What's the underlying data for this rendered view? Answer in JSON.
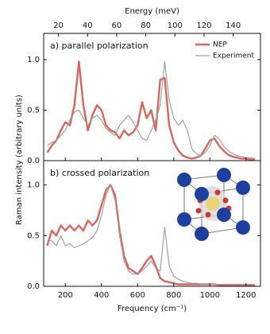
{
  "chart_data": [
    {
      "type": "line",
      "title": "a) parallel polarization",
      "x2label": "Energy (meV)",
      "ylabel": "Raman intensity (arbitrary units)",
      "x": [
        100,
        125,
        150,
        175,
        200,
        225,
        250,
        275,
        300,
        325,
        350,
        375,
        400,
        425,
        450,
        475,
        500,
        525,
        550,
        575,
        600,
        625,
        650,
        675,
        700,
        725,
        750,
        775,
        800,
        825,
        850,
        875,
        900,
        925,
        950,
        975,
        1000,
        1025,
        1050,
        1075,
        1100,
        1125,
        1150,
        1175,
        1200,
        1225,
        1250
      ],
      "series": [
        {
          "name": "NEP",
          "color": "#d9665b",
          "values": [
            0.08,
            0.15,
            0.2,
            0.3,
            0.38,
            0.35,
            0.55,
            0.98,
            0.55,
            0.3,
            0.45,
            0.55,
            0.5,
            0.35,
            0.3,
            0.28,
            0.22,
            0.3,
            0.25,
            0.28,
            0.35,
            0.58,
            0.42,
            0.5,
            0.3,
            0.8,
            0.82,
            0.35,
            0.18,
            0.1,
            0.05,
            0.03,
            0.02,
            0.03,
            0.05,
            0.12,
            0.2,
            0.22,
            0.15,
            0.1,
            0.06,
            0.04,
            0.03,
            0.02,
            0.02,
            0.01,
            0.01
          ]
        },
        {
          "name": "Experiment",
          "color": "#a0a0a0",
          "values": [
            0.15,
            0.18,
            0.2,
            0.25,
            0.3,
            0.4,
            0.48,
            0.5,
            0.42,
            0.35,
            0.42,
            0.45,
            0.4,
            0.32,
            0.28,
            0.25,
            0.35,
            0.4,
            0.45,
            0.38,
            0.3,
            0.22,
            0.2,
            0.3,
            0.4,
            0.55,
            0.98,
            0.6,
            0.42,
            0.35,
            0.4,
            0.3,
            0.12,
            0.07,
            0.05,
            0.08,
            0.15,
            0.25,
            0.22,
            0.15,
            0.1,
            0.07,
            0.05,
            0.04,
            0.03,
            0.03,
            0.02
          ]
        }
      ],
      "xlim": [
        80,
        1280
      ],
      "x2lim": [
        9.9,
        158.7
      ],
      "x2ticks": [
        20,
        40,
        60,
        80,
        100,
        120,
        140
      ],
      "ylim": [
        0,
        1.26
      ],
      "yticks": [
        {
          "value": 0,
          "label": "0.0"
        },
        {
          "value": 0.5,
          "label": "0.5"
        },
        {
          "value": 1,
          "label": "1.0"
        }
      ],
      "legend": "upper right"
    },
    {
      "type": "line",
      "title": "b) crossed polarization",
      "xlabel": "Frequency (cm⁻¹)",
      "x": [
        100,
        125,
        150,
        175,
        200,
        225,
        250,
        275,
        300,
        325,
        350,
        375,
        400,
        425,
        450,
        475,
        500,
        525,
        550,
        575,
        600,
        625,
        650,
        675,
        700,
        725,
        750,
        775,
        800,
        825,
        850,
        875,
        900,
        925,
        950,
        975,
        1000,
        1025,
        1050,
        1075,
        1100,
        1125,
        1150,
        1175,
        1200,
        1225,
        1250
      ],
      "series": [
        {
          "color": "#d9665b",
          "values": [
            0.4,
            0.55,
            0.5,
            0.6,
            0.55,
            0.6,
            0.55,
            0.6,
            0.55,
            0.65,
            0.6,
            0.65,
            0.8,
            0.95,
            1.0,
            0.9,
            0.55,
            0.3,
            0.18,
            0.15,
            0.12,
            0.18,
            0.25,
            0.3,
            0.2,
            0.08,
            0.05,
            0.04,
            0.03,
            0.02,
            0.02,
            0.02,
            0.02,
            0.02,
            0.02,
            0.02,
            0.02,
            0.02,
            0.01,
            0.01,
            0.01,
            0.01,
            0.01,
            0.01,
            0.01,
            0.01,
            0.01
          ]
        },
        {
          "color": "#a0a0a0",
          "values": [
            0.45,
            0.45,
            0.4,
            0.5,
            0.4,
            0.42,
            0.38,
            0.4,
            0.42,
            0.45,
            0.48,
            0.55,
            0.7,
            0.9,
            1.0,
            0.85,
            0.5,
            0.25,
            0.15,
            0.12,
            0.12,
            0.15,
            0.2,
            0.25,
            0.18,
            0.15,
            0.58,
            0.2,
            0.1,
            0.07,
            0.05,
            0.04,
            0.03,
            0.03,
            0.02,
            0.02,
            0.02,
            0.02,
            0.02,
            0.02,
            0.02,
            0.02,
            0.02,
            0.02,
            0.02,
            0.02,
            0.02
          ]
        }
      ],
      "xlim": [
        80,
        1280
      ],
      "xticks": [
        200,
        400,
        600,
        800,
        1000,
        1200
      ],
      "ylim": [
        0,
        1.24
      ],
      "yticks": [
        {
          "value": 0,
          "label": "0.0"
        },
        {
          "value": 0.5,
          "label": "0.5"
        },
        {
          "value": 1,
          "label": "1.0"
        }
      ]
    }
  ]
}
